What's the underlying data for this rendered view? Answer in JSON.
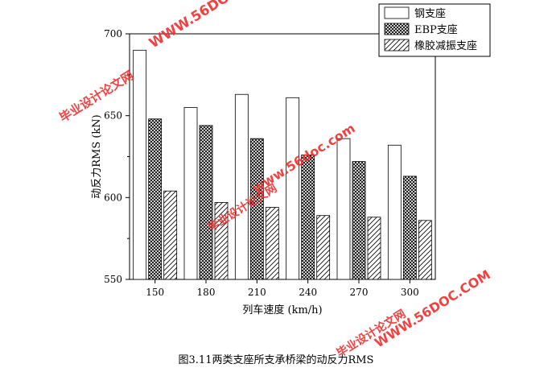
{
  "chart_data": {
    "type": "bar",
    "categories": [
      "150",
      "180",
      "210",
      "240",
      "270",
      "300"
    ],
    "series": [
      {
        "name": "钢支座",
        "values": [
          690,
          655,
          663,
          661,
          636,
          632
        ],
        "pattern": "none"
      },
      {
        "name": "EBP支座",
        "values": [
          648,
          644,
          636,
          626,
          622,
          613
        ],
        "pattern": "crosshatch"
      },
      {
        "name": "橡胶减振支座",
        "values": [
          604,
          597,
          594,
          589,
          588,
          586
        ],
        "pattern": "diagonal"
      }
    ],
    "xlabel": "列车速度 (km/h)",
    "ylabel": "动反力RMS (kN)",
    "ylim": [
      550,
      700
    ],
    "yticks": [
      550,
      600,
      650,
      700
    ],
    "legend_position": "top-right"
  },
  "caption": "图3.11两类支座所支承桥梁的动反力RMS",
  "watermark": {
    "site": "WWW.56DOC.COM",
    "site_alt": "www.56doc.com",
    "name": "毕业设计论文网",
    "color": "#ee3333"
  }
}
